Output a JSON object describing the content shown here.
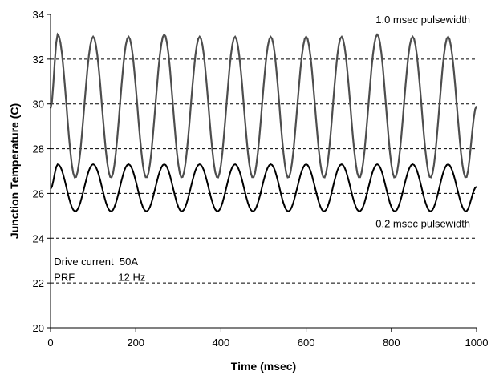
{
  "chart_data": {
    "type": "line",
    "xlabel": "Time  (msec)",
    "ylabel": "Junction Temperature  (C)",
    "xlim": [
      0,
      1000
    ],
    "ylim": [
      20,
      34
    ],
    "x_ticks": [
      0,
      200,
      400,
      600,
      800,
      1000
    ],
    "y_ticks": [
      20,
      22,
      24,
      26,
      28,
      30,
      32,
      34
    ],
    "grid": "horizontal dashed",
    "legend": "none",
    "series": [
      {
        "name": "1.0 msec pulsewidth",
        "color": "#4d4d4d",
        "period_msec": 83.3,
        "x": [
          0,
          17,
          58,
          100,
          142,
          183,
          225,
          267,
          308,
          350,
          392,
          433,
          475,
          517,
          558,
          600,
          642,
          683,
          725,
          767,
          808,
          850,
          892,
          933,
          975,
          1000
        ],
        "y": [
          29.8,
          33.1,
          26.7,
          33.0,
          26.7,
          33.0,
          26.7,
          33.1,
          26.7,
          33.0,
          26.7,
          33.0,
          26.7,
          33.0,
          26.7,
          33.0,
          26.7,
          33.0,
          26.7,
          33.1,
          26.7,
          33.0,
          26.7,
          33.0,
          26.7,
          29.9
        ]
      },
      {
        "name": "0.2 msec pulsewidth",
        "color": "#000000",
        "period_msec": 83.3,
        "x": [
          0,
          17,
          58,
          100,
          142,
          183,
          225,
          267,
          308,
          350,
          392,
          433,
          475,
          517,
          558,
          600,
          642,
          683,
          725,
          767,
          808,
          850,
          892,
          933,
          975,
          1000
        ],
        "y": [
          26.2,
          27.3,
          25.2,
          27.3,
          25.2,
          27.3,
          25.2,
          27.3,
          25.2,
          27.3,
          25.2,
          27.3,
          25.2,
          27.3,
          25.2,
          27.3,
          25.2,
          27.3,
          25.2,
          27.3,
          25.2,
          27.3,
          25.2,
          27.3,
          25.2,
          26.3
        ]
      }
    ],
    "annotations": [
      {
        "text": "1.0 msec pulsewidth",
        "x": 985,
        "y": 33.6,
        "anchor": "end"
      },
      {
        "text": "0.2 msec pulsewidth",
        "x": 985,
        "y": 24.5,
        "anchor": "end"
      },
      {
        "text": "Drive current  50A",
        "x": 8,
        "y": 22.8,
        "anchor": "start"
      },
      {
        "text": "PRF               12 Hz",
        "x": 8,
        "y": 22.1,
        "anchor": "start"
      }
    ]
  }
}
